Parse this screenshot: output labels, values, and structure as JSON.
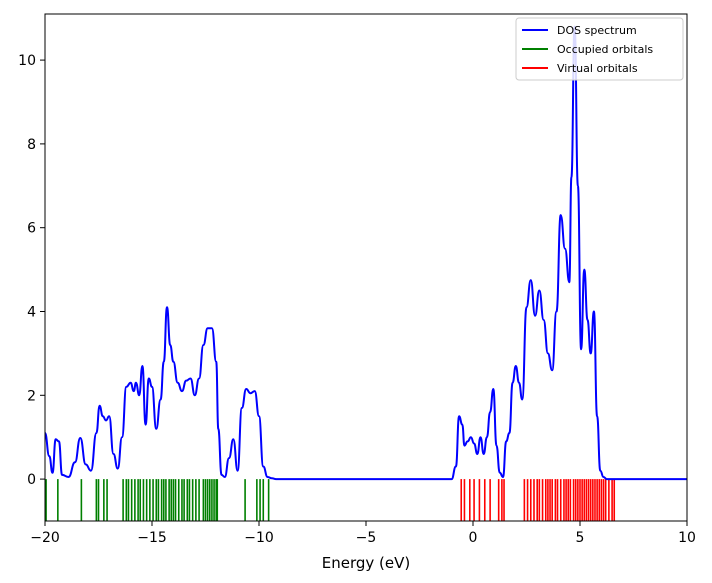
{
  "chart_data": {
    "type": "line",
    "title": "",
    "xlabel": "Energy (eV)",
    "ylabel": "",
    "xlim": [
      -20,
      10
    ],
    "ylim": [
      -1,
      11.1
    ],
    "x_ticks": [
      -20,
      -15,
      -10,
      -5,
      0,
      5,
      10
    ],
    "x_tick_labels": [
      "−20",
      "−15",
      "−10",
      "−5",
      "0",
      "5",
      "10"
    ],
    "y_ticks": [
      0,
      2,
      4,
      6,
      8,
      10
    ],
    "y_tick_labels": [
      "0",
      "2",
      "4",
      "6",
      "8",
      "10"
    ],
    "grid": false,
    "legend_position": "top-right",
    "series": [
      {
        "name": "DOS spectrum",
        "color": "#0000ff",
        "x": [
          -20.0,
          -19.8,
          -19.65,
          -19.5,
          -19.35,
          -19.2,
          -18.9,
          -18.6,
          -18.35,
          -18.1,
          -17.85,
          -17.6,
          -17.45,
          -17.3,
          -17.15,
          -17.0,
          -16.8,
          -16.6,
          -16.4,
          -16.2,
          -16.0,
          -15.85,
          -15.75,
          -15.6,
          -15.45,
          -15.3,
          -15.15,
          -15.0,
          -14.8,
          -14.6,
          -14.45,
          -14.3,
          -14.15,
          -14.0,
          -13.8,
          -13.6,
          -13.4,
          -13.2,
          -13.0,
          -12.8,
          -12.6,
          -12.4,
          -12.2,
          -12.0,
          -11.9,
          -11.75,
          -11.6,
          -11.4,
          -11.2,
          -11.0,
          -10.8,
          -10.6,
          -10.4,
          -10.2,
          -10.0,
          -9.8,
          -9.6,
          -9.4,
          -9.2,
          -9.0,
          -8.0,
          -5.0,
          -2.0,
          -1.0,
          -0.8,
          -0.65,
          -0.5,
          -0.4,
          -0.25,
          -0.1,
          0.05,
          0.2,
          0.35,
          0.5,
          0.65,
          0.8,
          0.95,
          1.1,
          1.25,
          1.4,
          1.55,
          1.7,
          1.85,
          2.0,
          2.15,
          2.3,
          2.5,
          2.7,
          2.9,
          3.1,
          3.3,
          3.5,
          3.7,
          3.9,
          4.1,
          4.3,
          4.5,
          4.6,
          4.75,
          4.9,
          5.05,
          5.2,
          5.35,
          5.5,
          5.65,
          5.8,
          5.95,
          6.1,
          6.25,
          6.4,
          6.55,
          6.7,
          6.9,
          7.2,
          8.0,
          10.0
        ],
        "y": [
          1.1,
          0.55,
          0.15,
          0.95,
          0.9,
          0.1,
          0.05,
          0.4,
          0.98,
          0.35,
          0.2,
          1.1,
          1.75,
          1.5,
          1.4,
          1.5,
          0.6,
          0.25,
          1.0,
          2.2,
          2.3,
          2.1,
          2.3,
          2.0,
          2.7,
          1.3,
          2.4,
          2.2,
          1.2,
          1.9,
          2.8,
          4.1,
          3.2,
          2.8,
          2.3,
          2.1,
          2.35,
          2.4,
          2.0,
          2.4,
          3.2,
          3.6,
          3.6,
          2.8,
          1.2,
          0.1,
          0.05,
          0.5,
          0.95,
          0.2,
          1.7,
          2.15,
          2.05,
          2.1,
          1.5,
          0.3,
          0.05,
          0.02,
          0.0,
          0.0,
          0.0,
          0.0,
          0.0,
          0.0,
          0.3,
          1.5,
          1.3,
          0.8,
          0.9,
          1.0,
          0.85,
          0.6,
          1.0,
          0.6,
          1.0,
          1.6,
          2.15,
          0.8,
          0.15,
          0.05,
          0.9,
          1.1,
          2.3,
          2.7,
          2.3,
          1.9,
          4.1,
          4.75,
          3.9,
          4.5,
          3.8,
          3.0,
          2.6,
          4.0,
          6.3,
          5.5,
          4.7,
          7.2,
          10.8,
          7.0,
          3.1,
          5.0,
          3.8,
          3.0,
          4.0,
          1.5,
          0.2,
          0.05,
          0.0,
          0.0,
          0.0,
          0.0,
          0.0,
          0.0,
          0.0,
          0.0
        ]
      },
      {
        "name": "Occupied orbitals",
        "color": "#008000",
        "x": [
          -19.95,
          -19.4,
          -18.3,
          -17.6,
          -17.5,
          -17.25,
          -17.1,
          -16.35,
          -16.2,
          -16.1,
          -15.95,
          -15.8,
          -15.65,
          -15.55,
          -15.4,
          -15.25,
          -15.1,
          -14.95,
          -14.8,
          -14.7,
          -14.55,
          -14.45,
          -14.35,
          -14.2,
          -14.1,
          -14.0,
          -13.9,
          -13.75,
          -13.6,
          -13.5,
          -13.35,
          -13.25,
          -13.1,
          -12.95,
          -12.8,
          -12.6,
          -12.5,
          -12.4,
          -12.3,
          -12.2,
          -12.1,
          -12.0,
          -11.95,
          -10.65,
          -10.1,
          -9.95,
          -9.8,
          -9.55
        ]
      },
      {
        "name": "Virtual orbitals",
        "color": "#ff0000",
        "x": [
          -0.55,
          -0.4,
          -0.15,
          0.05,
          0.3,
          0.55,
          0.8,
          1.2,
          1.35,
          1.45,
          2.4,
          2.55,
          2.7,
          2.85,
          3.0,
          3.1,
          3.25,
          3.4,
          3.5,
          3.6,
          3.7,
          3.85,
          3.95,
          4.1,
          4.25,
          4.35,
          4.45,
          4.55,
          4.7,
          4.8,
          4.9,
          5.0,
          5.1,
          5.2,
          5.3,
          5.4,
          5.5,
          5.6,
          5.7,
          5.8,
          5.9,
          6.0,
          6.1,
          6.2,
          6.35,
          6.5,
          6.6
        ]
      }
    ]
  }
}
